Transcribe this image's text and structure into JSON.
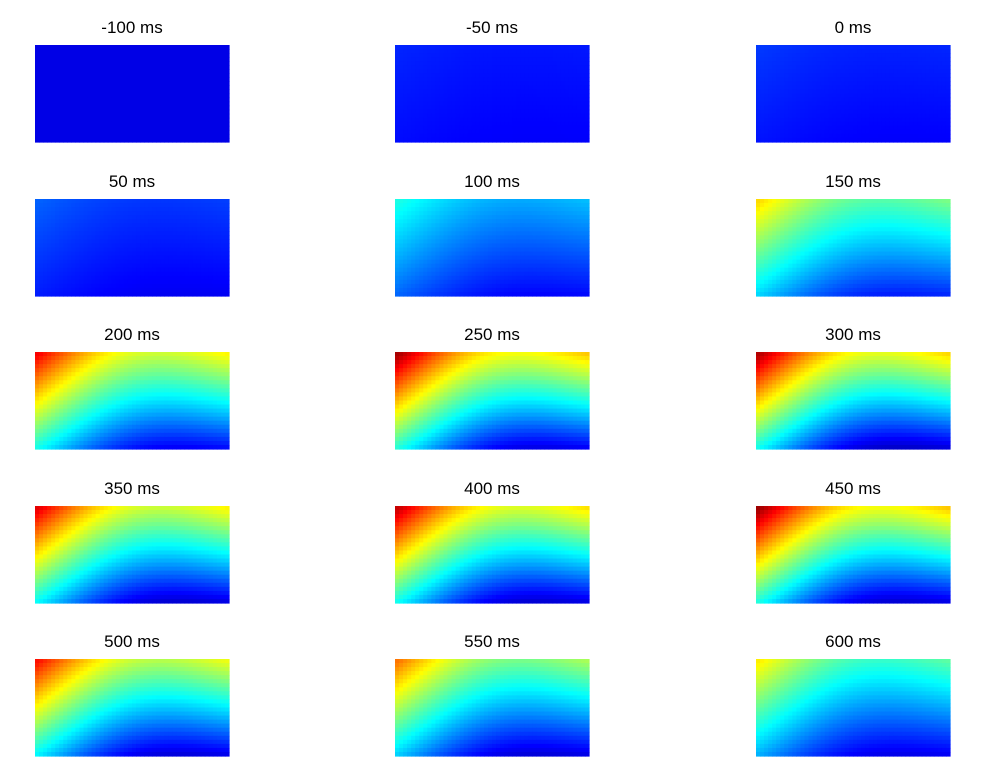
{
  "chart_data": {
    "type": "heatmap",
    "layout": "5 rows x 3 columns grid of topographic maps",
    "colormap": "jet",
    "colorbar": false,
    "axes_visible": false,
    "panels": [
      {
        "title": "-100 ms",
        "level": 0.1,
        "top_left": 0.1,
        "low_corner": 0.1
      },
      {
        "title": "-50 ms",
        "level": 0.14,
        "top_left": 0.16,
        "low_corner": 0.12
      },
      {
        "title": "0 ms",
        "level": 0.15,
        "top_left": 0.18,
        "low_corner": 0.12
      },
      {
        "title": "50 ms",
        "level": 0.17,
        "top_left": 0.22,
        "low_corner": 0.11
      },
      {
        "title": "100 ms",
        "level": 0.28,
        "top_left": 0.4,
        "low_corner": 0.12
      },
      {
        "title": "150 ms",
        "level": 0.5,
        "top_left": 0.66,
        "low_corner": 0.14
      },
      {
        "title": "200 ms",
        "level": 0.7,
        "top_left": 0.88,
        "low_corner": 0.1
      },
      {
        "title": "250 ms",
        "level": 0.76,
        "top_left": 0.96,
        "low_corner": 0.08
      },
      {
        "title": "300 ms",
        "level": 0.74,
        "top_left": 0.95,
        "low_corner": 0.05
      },
      {
        "title": "350 ms",
        "level": 0.72,
        "top_left": 0.9,
        "low_corner": 0.06
      },
      {
        "title": "400 ms",
        "level": 0.74,
        "top_left": 0.93,
        "low_corner": 0.06
      },
      {
        "title": "450 ms",
        "level": 0.74,
        "top_left": 0.97,
        "low_corner": 0.06
      },
      {
        "title": "500 ms",
        "level": 0.7,
        "top_left": 0.86,
        "low_corner": 0.07
      },
      {
        "title": "550 ms",
        "level": 0.58,
        "top_left": 0.76,
        "low_corner": 0.07
      },
      {
        "title": "600 ms",
        "level": 0.52,
        "top_left": 0.64,
        "low_corner": 0.09
      }
    ]
  }
}
